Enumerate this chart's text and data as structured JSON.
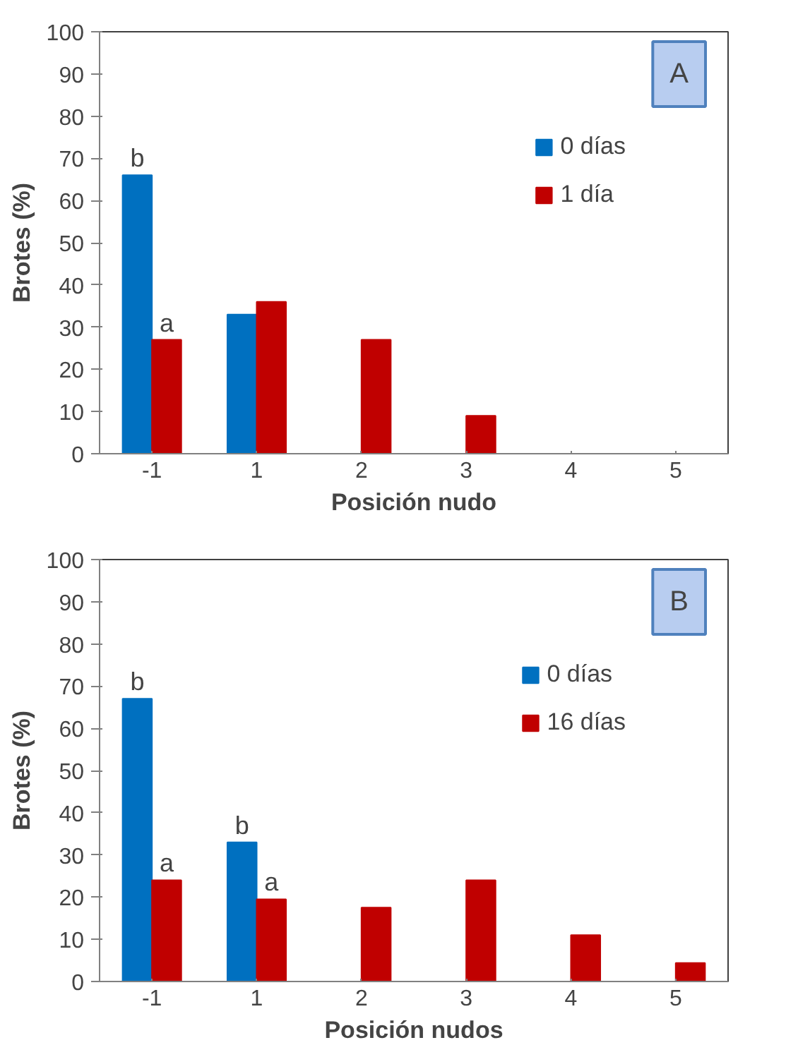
{
  "chart_data": [
    {
      "type": "bar",
      "xlabel": "Posición nudo",
      "ylabel": "Brotes (%)",
      "categories": [
        "-1",
        "1",
        "2",
        "3",
        "4",
        "5"
      ],
      "series": [
        {
          "name": "0 días",
          "color": "#0070c0",
          "values": [
            66,
            33,
            0,
            0,
            0,
            0
          ]
        },
        {
          "name": "1 día",
          "color": "#c00000",
          "values": [
            27,
            36,
            27,
            9,
            0,
            0
          ]
        }
      ],
      "ylim": [
        0,
        100
      ],
      "yticks": [
        0,
        10,
        20,
        30,
        40,
        50,
        60,
        70,
        80,
        90,
        100
      ],
      "grid": false,
      "legend": "top right",
      "annotations": [
        "A",
        {
          "text": "b",
          "x": "-1",
          "y": 66
        },
        {
          "text": "a",
          "x": "-1",
          "y": 27
        }
      ]
    },
    {
      "type": "bar",
      "xlabel": "Posición nudos",
      "ylabel": "Brotes (%)",
      "categories": [
        "-1",
        "1",
        "2",
        "3",
        "4",
        "5"
      ],
      "series": [
        {
          "name": "0 días",
          "color": "#0070c0",
          "values": [
            67,
            33,
            0,
            0,
            0,
            0
          ]
        },
        {
          "name": "16 días",
          "color": "#c00000",
          "values": [
            24,
            19.5,
            17.5,
            24,
            11,
            4.4
          ]
        }
      ],
      "ylim": [
        0,
        100
      ],
      "yticks": [
        0,
        10,
        20,
        30,
        40,
        50,
        60,
        70,
        80,
        90,
        100
      ],
      "grid": false,
      "legend": "top right",
      "annotations": [
        "B",
        {
          "text": "b",
          "x": "-1",
          "y": 67
        },
        {
          "text": "a",
          "x": "-1",
          "y": 24
        },
        {
          "text": "b",
          "x": "1",
          "y": 33
        },
        {
          "text": "a",
          "x": "1",
          "y": 19.5
        }
      ]
    }
  ]
}
